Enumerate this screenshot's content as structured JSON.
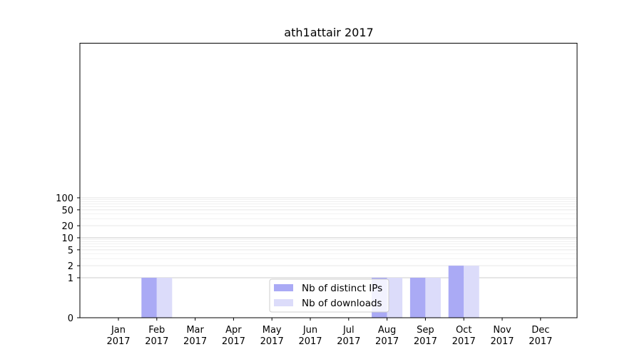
{
  "chart_data": {
    "type": "bar",
    "title": "ath1attair 2017",
    "xlabel": "",
    "ylabel": "",
    "y_scale": "symlog",
    "y_ticks": [
      0,
      1,
      2,
      5,
      10,
      20,
      50,
      100
    ],
    "y_tick_labels": [
      "0",
      "1",
      "2",
      "5",
      "10",
      "20",
      "50",
      "100"
    ],
    "categories": [
      {
        "month": "Jan",
        "year": "2017"
      },
      {
        "month": "Feb",
        "year": "2017"
      },
      {
        "month": "Mar",
        "year": "2017"
      },
      {
        "month": "Apr",
        "year": "2017"
      },
      {
        "month": "May",
        "year": "2017"
      },
      {
        "month": "Jun",
        "year": "2017"
      },
      {
        "month": "Jul",
        "year": "2017"
      },
      {
        "month": "Aug",
        "year": "2017"
      },
      {
        "month": "Sep",
        "year": "2017"
      },
      {
        "month": "Oct",
        "year": "2017"
      },
      {
        "month": "Nov",
        "year": "2017"
      },
      {
        "month": "Dec",
        "year": "2017"
      }
    ],
    "series": [
      {
        "name": "Nb of distinct IPs",
        "color": "#aaaaf5",
        "values": [
          0,
          1,
          0,
          0,
          0,
          0,
          0,
          1,
          1,
          2,
          0,
          0
        ]
      },
      {
        "name": "Nb of downloads",
        "color": "#dcdcfa",
        "values": [
          0,
          1,
          0,
          0,
          0,
          0,
          0,
          1,
          1,
          2,
          0,
          0
        ]
      }
    ],
    "grid": true,
    "legend_position": "bottom-center"
  }
}
